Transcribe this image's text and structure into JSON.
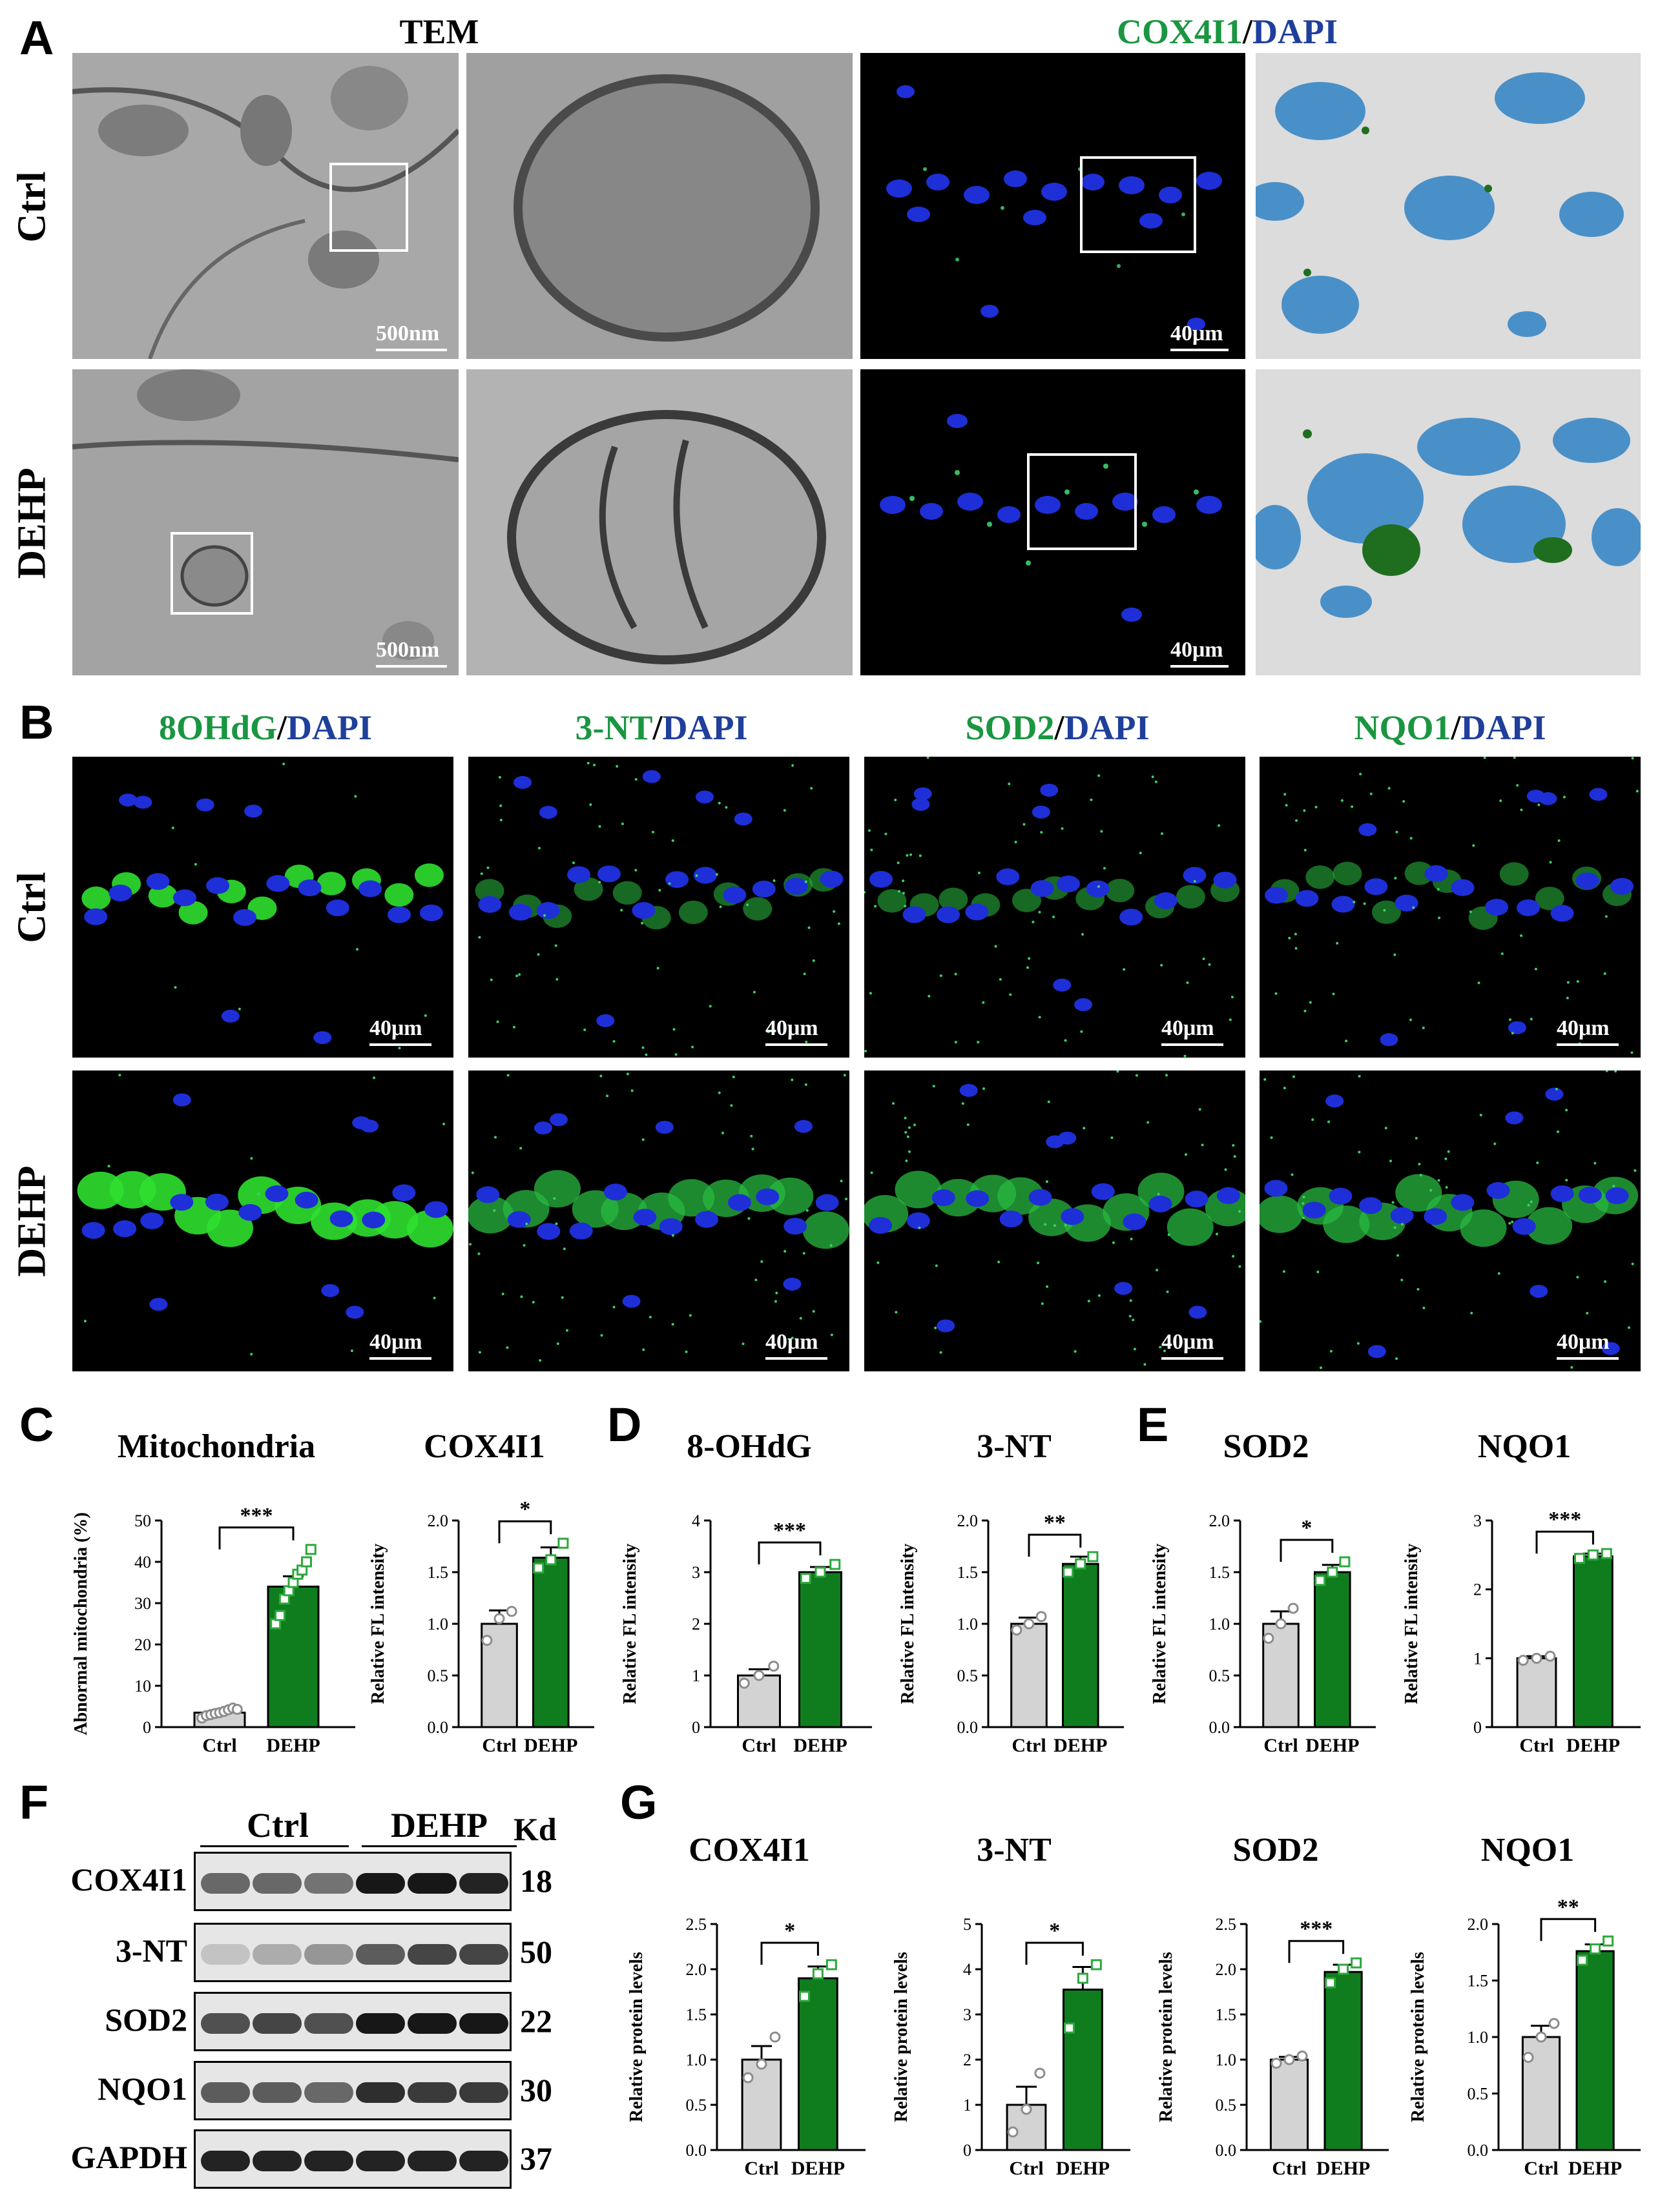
{
  "panels": {
    "A": "A",
    "B": "B",
    "C": "C",
    "D": "D",
    "E": "E",
    "F": "F",
    "G": "G"
  },
  "groups": {
    "ctrl": "Ctrl",
    "dehp": "DEHP"
  },
  "panelA": {
    "tem_header": "TEM",
    "stain_marker": "COX4I1",
    "stain_sep": "/",
    "stain_dapi": "DAPI",
    "scale_tem": "500nm",
    "scale_fl": "40μm"
  },
  "panelB": {
    "stains": [
      {
        "marker": "8OHdG",
        "sep": "/",
        "dapi": "DAPI"
      },
      {
        "marker": "3-NT",
        "sep": "/",
        "dapi": "DAPI"
      },
      {
        "marker": "SOD2",
        "sep": "/",
        "dapi": "DAPI"
      },
      {
        "marker": "NQO1",
        "sep": "/",
        "dapi": "DAPI"
      }
    ],
    "scale": "40μm"
  },
  "panelF": {
    "kd_header": "Kd",
    "bands": [
      {
        "name": "COX4I1",
        "kd": "18"
      },
      {
        "name": "3-NT",
        "kd": "50"
      },
      {
        "name": "SOD2",
        "kd": "22"
      },
      {
        "name": "NQO1",
        "kd": "30"
      },
      {
        "name": "GAPDH",
        "kd": "37"
      }
    ]
  },
  "colors": {
    "ctrl_bar": "#d3d3d3",
    "dehp_bar": "#0f7d1e",
    "marker_green": "#1a9640",
    "dapi_blue": "#1f3f9a",
    "nucleus_blue": "#1e2fd8",
    "seg_blue": "#4a90c8",
    "seg_green": "#1f6e1f"
  },
  "chart_data": [
    {
      "id": "C1",
      "type": "bar",
      "title": "Mitochondria",
      "ylabel": "Abnormal mitochondria (%)",
      "categories": [
        "Ctrl",
        "DEHP"
      ],
      "values": [
        3.5,
        34
      ],
      "errors": [
        0.6,
        2.5
      ],
      "ylim": [
        0,
        50
      ],
      "yticks": [
        "0",
        "10",
        "20",
        "30",
        "40",
        "50"
      ],
      "sig": "***",
      "points": [
        [
          2.2,
          2.8,
          3.0,
          3.3,
          3.5,
          3.8,
          4.2,
          4.6,
          4.3
        ],
        [
          25,
          27,
          31,
          33,
          35,
          37,
          38,
          40,
          43
        ]
      ]
    },
    {
      "id": "C2",
      "type": "bar",
      "title": "COX4I1",
      "ylabel": "Relative FL intensity",
      "categories": [
        "Ctrl",
        "DEHP"
      ],
      "values": [
        1.0,
        1.64
      ],
      "errors": [
        0.13,
        0.1
      ],
      "ylim": [
        0,
        2.0
      ],
      "yticks": [
        "0.0",
        "0.5",
        "1.0",
        "1.5",
        "2.0"
      ],
      "sig": "*",
      "points": [
        [
          0.84,
          1.05,
          1.12
        ],
        [
          1.54,
          1.62,
          1.78
        ]
      ]
    },
    {
      "id": "D1",
      "type": "bar",
      "title": "8-OHdG",
      "ylabel": "Relative FL intensity",
      "categories": [
        "Ctrl",
        "DEHP"
      ],
      "values": [
        1.0,
        3.0
      ],
      "errors": [
        0.12,
        0.1
      ],
      "ylim": [
        0,
        4
      ],
      "yticks": [
        "0",
        "1",
        "2",
        "3",
        "4"
      ],
      "sig": "***",
      "points": [
        [
          0.85,
          1.0,
          1.18
        ],
        [
          2.88,
          3.0,
          3.15
        ]
      ]
    },
    {
      "id": "D2",
      "type": "bar",
      "title": "3-NT",
      "ylabel": "Relative FL intensity",
      "categories": [
        "Ctrl",
        "DEHP"
      ],
      "values": [
        1.0,
        1.58
      ],
      "errors": [
        0.06,
        0.07
      ],
      "ylim": [
        0,
        2.0
      ],
      "yticks": [
        "0.0",
        "0.5",
        "1.0",
        "1.5",
        "2.0"
      ],
      "sig": "**",
      "points": [
        [
          0.94,
          1.0,
          1.07
        ],
        [
          1.5,
          1.58,
          1.65
        ]
      ]
    },
    {
      "id": "E1",
      "type": "bar",
      "title": "SOD2",
      "ylabel": "Relative FL intensity",
      "categories": [
        "Ctrl",
        "DEHP"
      ],
      "values": [
        1.0,
        1.5
      ],
      "errors": [
        0.12,
        0.07
      ],
      "ylim": [
        0,
        2.0
      ],
      "yticks": [
        "0.0",
        "0.5",
        "1.0",
        "1.5",
        "2.0"
      ],
      "sig": "*",
      "points": [
        [
          0.86,
          1.0,
          1.15
        ],
        [
          1.42,
          1.5,
          1.6
        ]
      ]
    },
    {
      "id": "E2",
      "type": "bar",
      "title": "NQO1",
      "ylabel": "Relative FL intensity",
      "categories": [
        "Ctrl",
        "DEHP"
      ],
      "values": [
        1.0,
        2.48
      ],
      "errors": [
        0.03,
        0.04
      ],
      "ylim": [
        0,
        3
      ],
      "yticks": [
        "0",
        "1",
        "2",
        "3"
      ],
      "sig": "***",
      "points": [
        [
          0.97,
          1.0,
          1.03
        ],
        [
          2.45,
          2.5,
          2.52
        ]
      ]
    },
    {
      "id": "G1",
      "type": "bar",
      "title": "COX4I1",
      "ylabel": "Relative protein levels",
      "categories": [
        "Ctrl",
        "DEHP"
      ],
      "values": [
        1.0,
        1.9
      ],
      "errors": [
        0.15,
        0.13
      ],
      "ylim": [
        0,
        2.5
      ],
      "yticks": [
        "0.0",
        "0.5",
        "1.0",
        "1.5",
        "2.0",
        "2.5"
      ],
      "sig": "*",
      "points": [
        [
          0.8,
          0.95,
          1.25
        ],
        [
          1.7,
          1.95,
          2.05
        ]
      ]
    },
    {
      "id": "G2",
      "type": "bar",
      "title": "3-NT",
      "ylabel": "Relative protein levels",
      "categories": [
        "Ctrl",
        "DEHP"
      ],
      "values": [
        1.0,
        3.55
      ],
      "errors": [
        0.4,
        0.5
      ],
      "ylim": [
        0,
        5
      ],
      "yticks": [
        "0",
        "1",
        "2",
        "3",
        "4",
        "5"
      ],
      "sig": "*",
      "points": [
        [
          0.4,
          0.9,
          1.7
        ],
        [
          2.7,
          3.8,
          4.1
        ]
      ]
    },
    {
      "id": "G3",
      "type": "bar",
      "title": "SOD2",
      "ylabel": "Relative protein levels",
      "categories": [
        "Ctrl",
        "DEHP"
      ],
      "values": [
        1.0,
        1.97
      ],
      "errors": [
        0.03,
        0.08
      ],
      "ylim": [
        0,
        2.5
      ],
      "yticks": [
        "0.0",
        "0.5",
        "1.0",
        "1.5",
        "2.0",
        "2.5"
      ],
      "sig": "***",
      "points": [
        [
          0.96,
          1.0,
          1.04
        ],
        [
          1.85,
          2.0,
          2.07
        ]
      ]
    },
    {
      "id": "G4",
      "type": "bar",
      "title": "NQO1",
      "ylabel": "Relative protein levels",
      "categories": [
        "Ctrl",
        "DEHP"
      ],
      "values": [
        1.0,
        1.76
      ],
      "errors": [
        0.1,
        0.06
      ],
      "ylim": [
        0,
        2.0
      ],
      "yticks": [
        "0.0",
        "0.5",
        "1.0",
        "1.5",
        "2.0"
      ],
      "sig": "**",
      "points": [
        [
          0.82,
          1.0,
          1.12
        ],
        [
          1.68,
          1.78,
          1.85
        ]
      ]
    }
  ]
}
